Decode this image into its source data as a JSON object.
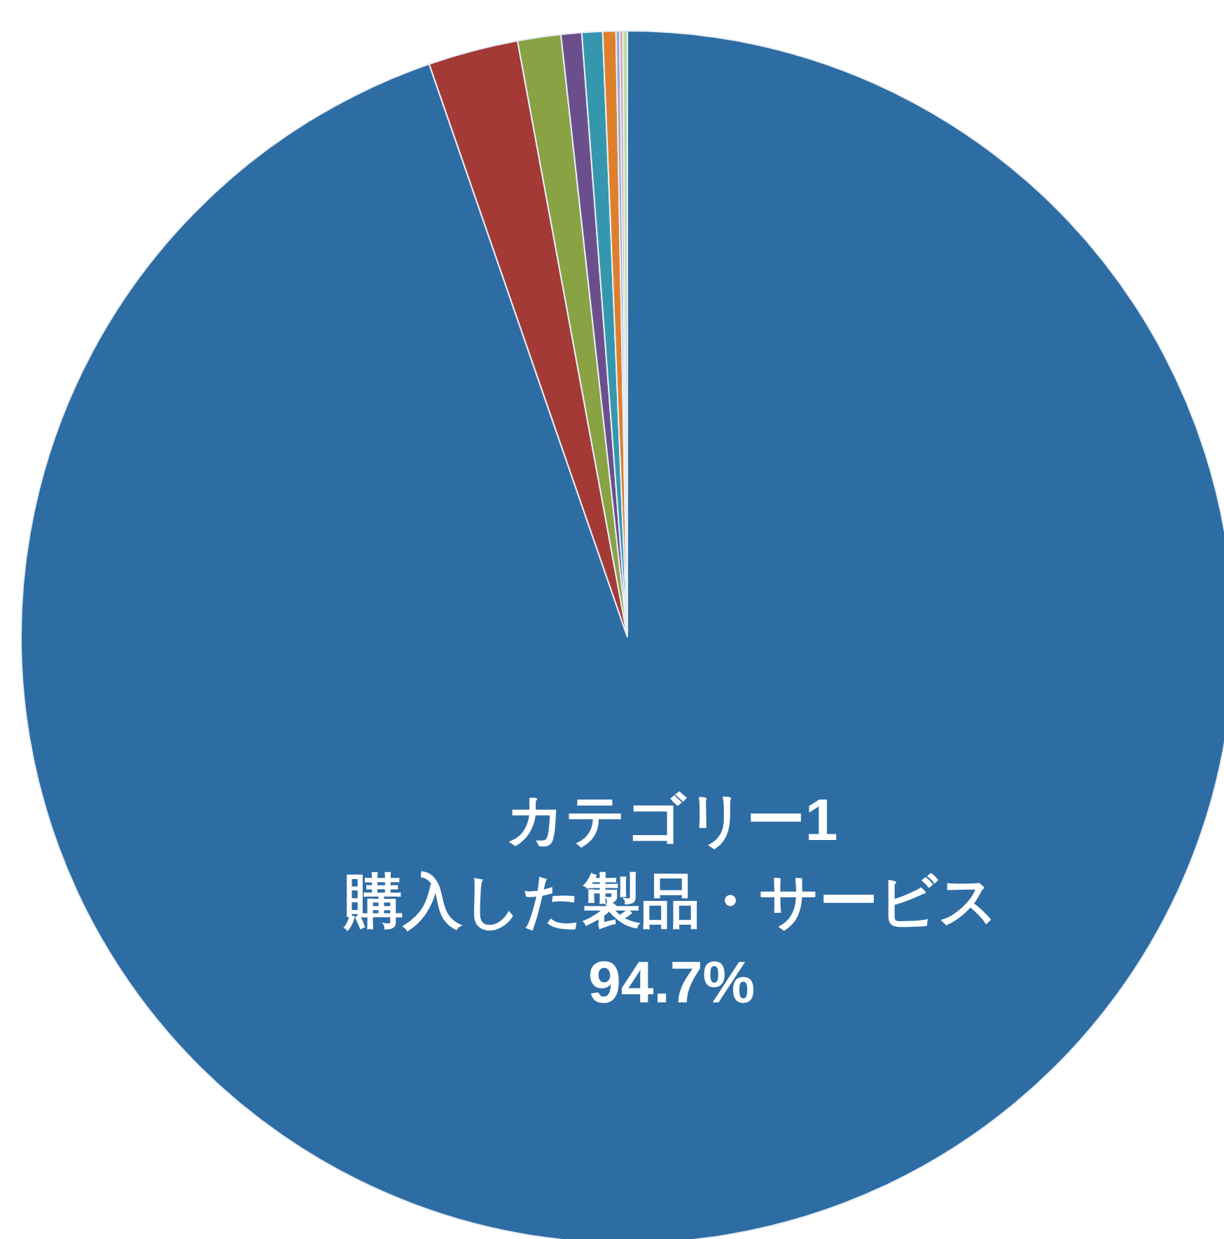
{
  "chart_data": {
    "type": "pie",
    "categories": [
      "カテゴリー1\n購入した製品・サービス",
      null,
      null,
      null,
      null,
      null,
      null,
      null,
      null
    ],
    "values": [
      94.7,
      2.4,
      1.15,
      0.55,
      0.55,
      0.35,
      0.1,
      0.08,
      0.12
    ],
    "colors": [
      "#2e6da4",
      "#a43a36",
      "#88a244",
      "#6b4f8c",
      "#3597ad",
      "#de7f2c",
      "#94a9d2",
      "#d79a9a",
      "#c4d9a4"
    ],
    "value_labels": [
      "94.7%",
      null,
      null,
      null,
      null,
      null,
      null,
      null,
      null
    ]
  }
}
